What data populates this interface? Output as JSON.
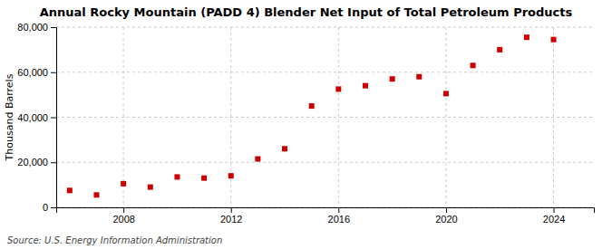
{
  "chart_data": {
    "type": "scatter",
    "title": "Annual Rocky Mountain (PADD 4) Blender Net Input of Total Petroleum Products",
    "ylabel": "Thousand Barrels",
    "annotations": [
      "Source: U.S. Energy Information Administration"
    ],
    "x": [
      2006,
      2007,
      2008,
      2009,
      2010,
      2011,
      2012,
      2013,
      2014,
      2015,
      2016,
      2017,
      2018,
      2019,
      2020,
      2021,
      2022,
      2023,
      2024
    ],
    "values": [
      7500,
      5500,
      10500,
      9000,
      13500,
      13000,
      14000,
      21500,
      26000,
      45000,
      52500,
      54000,
      57000,
      58000,
      50500,
      63000,
      70000,
      75500,
      74500
    ],
    "color": "#cc0000",
    "marker": "square",
    "xlim": [
      2005.5,
      2025.5
    ],
    "xticks": [
      2008,
      2012,
      2016,
      2020,
      2024
    ],
    "ylim": [
      0,
      80000
    ],
    "yticks": [
      0,
      {
        "value": 20000,
        "label": "20,000"
      },
      {
        "value": 40000,
        "label": "40,000"
      },
      {
        "value": 60000,
        "label": "60,000"
      },
      {
        "value": 80000,
        "label": "80,000"
      }
    ],
    "grid": true
  }
}
